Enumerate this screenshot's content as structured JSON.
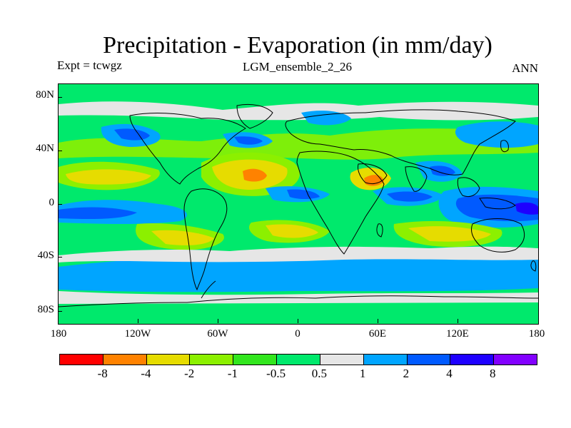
{
  "figure": {
    "title": "Precipitation - Evaporation (in mm/day)",
    "left_subtitle": "Expt = tcwgz",
    "center_subtitle": "LGM_ensemble_2_26",
    "right_subtitle": "ANN"
  },
  "axes": {
    "lat_labels": [
      "80N",
      "40N",
      "0",
      "40S",
      "80S"
    ],
    "lon_labels": [
      "180",
      "120W",
      "60W",
      "0",
      "60E",
      "120E",
      "180"
    ]
  },
  "legend": {
    "colors": [
      "#FF0000",
      "#FF8200",
      "#E6DC00",
      "#8CF000",
      "#32E61E",
      "#00E96C",
      "#E6E6E6",
      "#00A5FF",
      "#005AFF",
      "#1E00FF",
      "#8200FF"
    ],
    "labels": [
      "-8",
      "-4",
      "-2",
      "-1",
      "-0.5",
      "0.5",
      "1",
      "2",
      "4",
      "8"
    ]
  }
}
